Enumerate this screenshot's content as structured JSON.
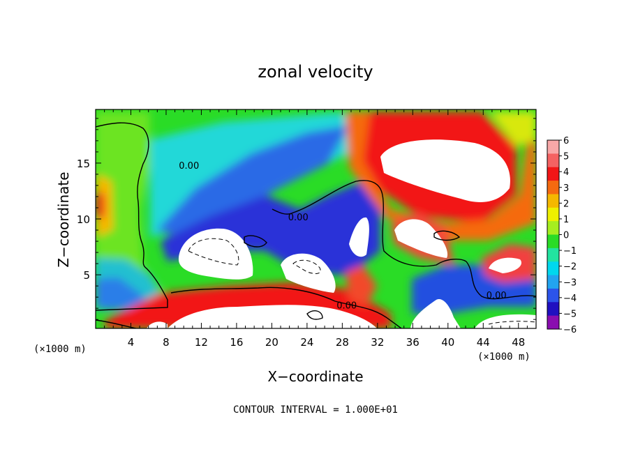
{
  "chart_data": {
    "type": "heatmap",
    "title": "zonal velocity",
    "xlabel": "X−coordinate",
    "ylabel": "Z−coordinate",
    "x_unit_label": "(×1000 m)",
    "z_unit_label": "(×1000 m)",
    "footer": "CONTOUR INTERVAL = 1.000E+01",
    "xlim": [
      0,
      50
    ],
    "ylim": [
      0.2,
      19.8
    ],
    "x_ticks": [
      4,
      8,
      12,
      16,
      20,
      24,
      28,
      32,
      36,
      40,
      44,
      48
    ],
    "y_ticks": [
      5,
      10,
      15
    ],
    "colorbar": {
      "ticks": [
        6,
        5,
        4,
        3,
        2,
        1,
        0,
        -1,
        -2,
        -3,
        -4,
        -5,
        -6
      ],
      "colors": [
        "#f8a8a8",
        "#f46262",
        "#f21616",
        "#f56a10",
        "#f5b800",
        "#eef000",
        "#a6ee20",
        "#2adc26",
        "#22e3a0",
        "#00d8ee",
        "#22a4f0",
        "#2c54ea",
        "#2010c0",
        "#8a0eb0"
      ]
    },
    "contour_labels": [
      {
        "text": "0.00",
        "x": 10.6,
        "z": 14.8
      },
      {
        "text": "0.00",
        "x": 23.0,
        "z": 10.2
      },
      {
        "text": "0.00",
        "x": 28.5,
        "z": 2.3
      },
      {
        "text": "0.00",
        "x": 45.5,
        "z": 3.2
      }
    ]
  }
}
